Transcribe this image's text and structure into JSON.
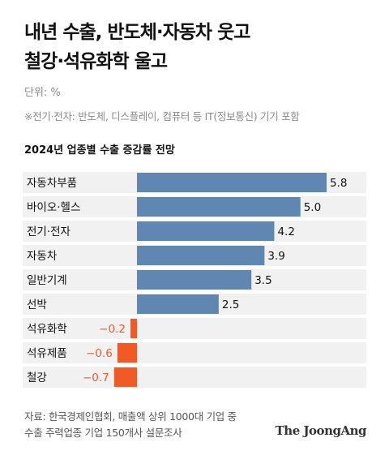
{
  "title": {
    "line1": "내년 수출, 반도체·자동차 웃고",
    "line2": "철강·석유화학 울고"
  },
  "unit": "단위: %",
  "note": "※전기·전자: 반도체, 디스플레이, 컴퓨터 등 IT(정보통신) 기기 포함",
  "source": {
    "line1": "자료: 한국경제인협회, 매출액 상위 1000대 기업 중",
    "line2": "수출 주력업종 기업 150개사 설문조사"
  },
  "logo": "The JoongAng",
  "colors": {
    "positive": "#5f87b1",
    "negative": "#f15a24",
    "positive_label": "#111111",
    "negative_label": "#f15a24",
    "row_background": "#f1f1f1"
  },
  "chart_data": {
    "type": "bar",
    "orientation": "horizontal",
    "title": "2024년 업종별 수출 증감률 전망",
    "categories": [
      "자동차부품",
      "바이오·헬스",
      "전기·전자",
      "자동차",
      "일반기계",
      "선박",
      "석유화학",
      "석유제품",
      "철강"
    ],
    "values": [
      5.8,
      5.0,
      4.2,
      3.9,
      3.5,
      2.5,
      -0.2,
      -0.6,
      -0.7
    ],
    "value_labels": [
      "5.8",
      "5.0",
      "4.2",
      "3.9",
      "3.5",
      "2.5",
      "−0.2",
      "−0.6",
      "−0.7"
    ],
    "xlim": [
      -0.7,
      5.8
    ]
  }
}
